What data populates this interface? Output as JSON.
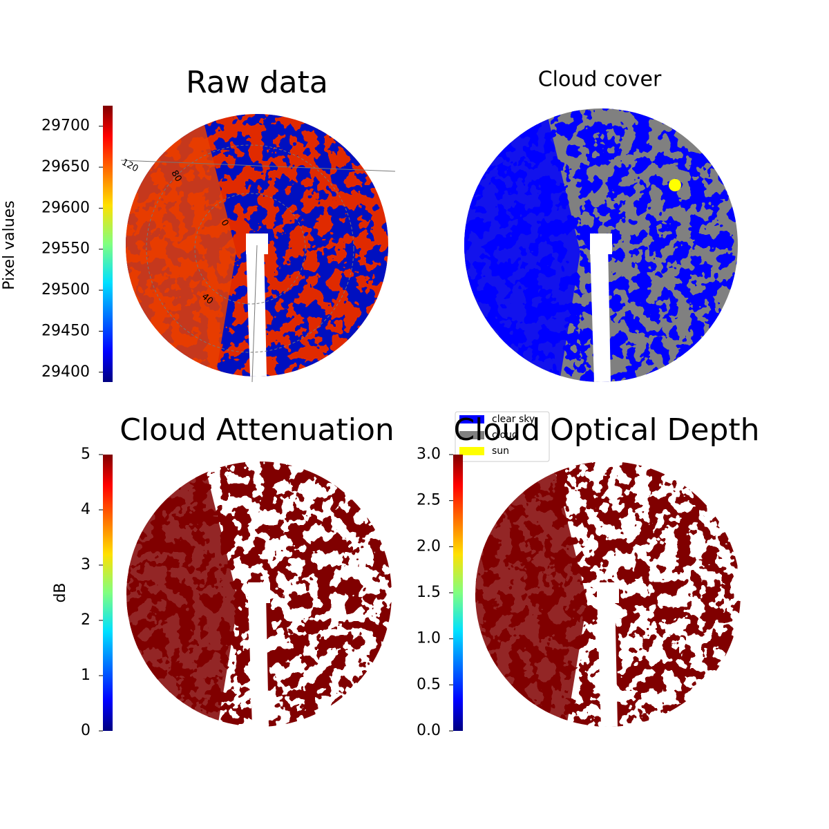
{
  "chart_data": [
    {
      "type": "image",
      "title": "Raw data",
      "colorbar_label": "Pixel values",
      "colormap": "jet",
      "ylim": [
        29388,
        29725
      ],
      "yticks": [
        29400,
        29450,
        29500,
        29550,
        29600,
        29650,
        29700
      ],
      "annotations": [
        "120",
        "80",
        "0",
        "40"
      ]
    },
    {
      "type": "image",
      "title": "Cloud cover",
      "series": [
        {
          "name": "clear sky",
          "color": "#0000ff"
        },
        {
          "name": "cloud",
          "color": "#808080"
        },
        {
          "name": "sun",
          "color": "#ffff00"
        }
      ]
    },
    {
      "type": "image",
      "title": "Cloud Attenuation",
      "colorbar_label": "dB",
      "colormap": "jet",
      "ylim": [
        0,
        5
      ],
      "yticks": [
        0,
        1,
        2,
        3,
        4,
        5
      ]
    },
    {
      "type": "image",
      "title": "Cloud Optical Depth",
      "colormap": "jet",
      "ylim": [
        0,
        3
      ],
      "yticks": [
        {
          "value": 0,
          "label": "0.0"
        },
        0.5,
        {
          "value": 1,
          "label": "1.0"
        },
        1.5,
        {
          "value": 2,
          "label": "2.0"
        },
        2.5,
        {
          "value": 3,
          "label": "3.0"
        }
      ]
    }
  ]
}
